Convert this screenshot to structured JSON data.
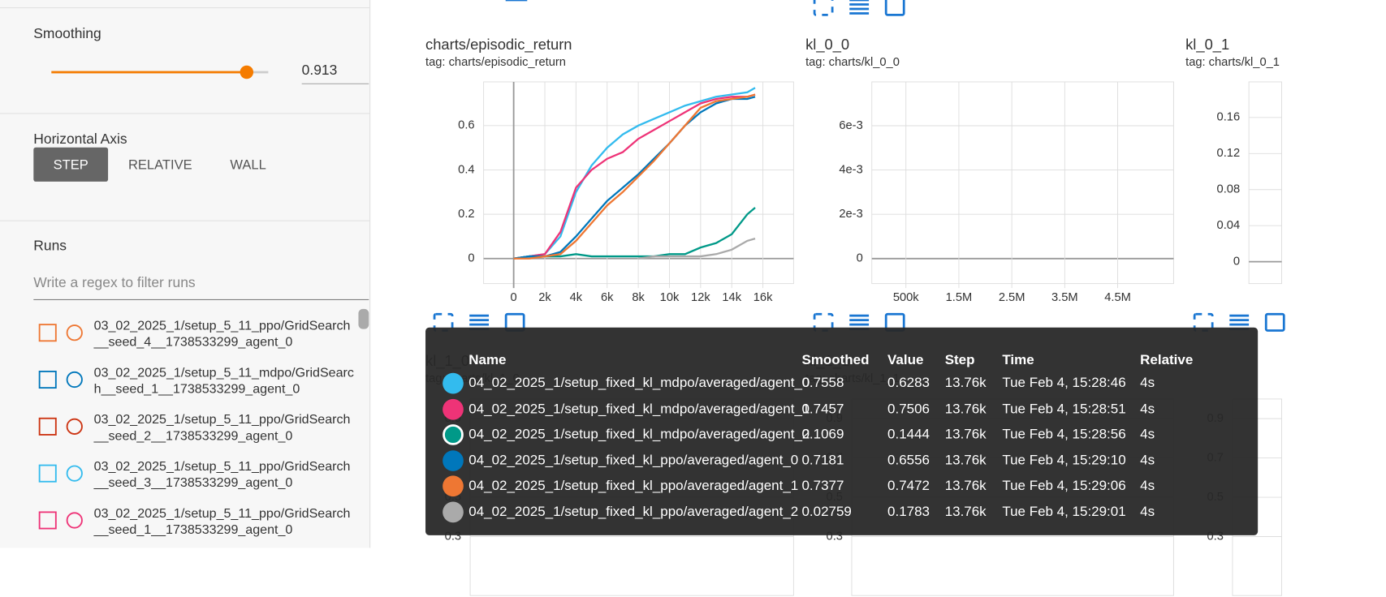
{
  "sidebar": {
    "smoothing": {
      "label": "Smoothing",
      "value": 0.913
    },
    "horizontal_axis": {
      "title": "Horizontal Axis",
      "options": [
        "STEP",
        "RELATIVE",
        "WALL"
      ],
      "selected": 0
    },
    "runs": {
      "title": "Runs",
      "filter_placeholder": "Write a regex to filter runs",
      "items": [
        {
          "name": "03_02_2025_1/setup_5_11_ppo/GridSearch__seed_4__1738533299_agent_0",
          "color": "#ee7733"
        },
        {
          "name": "03_02_2025_1/setup_5_11_mdpo/GridSearch__seed_1__1738533299_agent_0",
          "color": "#0077bb"
        },
        {
          "name": "03_02_2025_1/setup_5_11_ppo/GridSearch__seed_2__1738533299_agent_0",
          "color": "#cc3311"
        },
        {
          "name": "03_02_2025_1/setup_5_11_ppo/GridSearch__seed_3__1738533299_agent_0",
          "color": "#33bbee"
        },
        {
          "name": "03_02_2025_1/setup_5_11_ppo/GridSearch__seed_1__1738533299_agent_0",
          "color": "#ee3377"
        }
      ]
    }
  },
  "charts": [
    {
      "type": "line",
      "title": "charts/episodic_return",
      "tag": "tag: charts/episodic_return",
      "xlim": [
        -1930,
        17970
      ],
      "ylim": [
        -0.113,
        0.797
      ],
      "xticks": [
        0,
        {
          "value": 2000,
          "label": "2k"
        },
        {
          "value": 4000,
          "label": "4k"
        },
        {
          "value": 6000,
          "label": "6k"
        },
        {
          "value": 8000,
          "label": "8k"
        },
        {
          "value": 10000,
          "label": "10k"
        },
        {
          "value": 12000,
          "label": "12k"
        },
        {
          "value": 14000,
          "label": "14k"
        },
        {
          "value": 16000,
          "label": "16k"
        }
      ],
      "yticks": [
        0,
        0.2,
        0.4,
        0.6
      ],
      "x": [
        0,
        1000,
        2000,
        3000,
        4000,
        5000,
        6000,
        7000,
        8000,
        9000,
        10000,
        11000,
        12000,
        13000,
        14000,
        15000,
        15500
      ],
      "series": [
        {
          "color": "#33bbee",
          "values": [
            0,
            0.01,
            0.02,
            0.1,
            0.3,
            0.42,
            0.5,
            0.56,
            0.6,
            0.63,
            0.66,
            0.69,
            0.71,
            0.73,
            0.74,
            0.75,
            0.77
          ]
        },
        {
          "color": "#ee3377",
          "values": [
            0,
            0.01,
            0.02,
            0.12,
            0.32,
            0.4,
            0.45,
            0.48,
            0.54,
            0.58,
            0.62,
            0.66,
            0.7,
            0.72,
            0.73,
            0.73,
            0.74
          ]
        },
        {
          "color": "#009988",
          "values": [
            0,
            0.01,
            0.01,
            0.01,
            0.02,
            0.01,
            0.01,
            0.01,
            0.01,
            0.01,
            0.02,
            0.02,
            0.05,
            0.07,
            0.11,
            0.2,
            0.23
          ]
        },
        {
          "color": "#0077bb",
          "values": [
            0,
            0.01,
            0.01,
            0.03,
            0.1,
            0.18,
            0.26,
            0.32,
            0.38,
            0.45,
            0.52,
            0.6,
            0.66,
            0.7,
            0.72,
            0.72,
            0.73
          ]
        },
        {
          "color": "#ee7733",
          "values": [
            0,
            0,
            0.01,
            0.02,
            0.08,
            0.16,
            0.24,
            0.3,
            0.37,
            0.44,
            0.52,
            0.6,
            0.68,
            0.71,
            0.72,
            0.73,
            0.74
          ]
        },
        {
          "color": "#aaaaaa",
          "values": [
            null,
            null,
            null,
            null,
            null,
            null,
            null,
            null,
            0,
            0.01,
            0.01,
            0.01,
            0.01,
            0.02,
            0.04,
            0.08,
            0.09
          ]
        }
      ]
    },
    {
      "type": "line",
      "title": "kl_0_0",
      "tag": "tag: charts/kl_0_0",
      "xlim": [
        -144000,
        5557000
      ],
      "ylim": [
        -0.00113,
        0.00798
      ],
      "xticks": [
        {
          "value": 500000,
          "label": "500k"
        },
        {
          "value": 1500000,
          "label": "1.5M"
        },
        {
          "value": 2500000,
          "label": "2.5M"
        },
        {
          "value": 3500000,
          "label": "3.5M"
        },
        {
          "value": 4500000,
          "label": "4.5M"
        }
      ],
      "yticks": [
        0,
        {
          "value": 0.002,
          "label": "2e-3"
        },
        {
          "value": 0.004,
          "label": "4e-3"
        },
        {
          "value": 0.006,
          "label": "6e-3"
        }
      ]
    },
    {
      "type": "line",
      "title": "kl_0_1",
      "tag": "tag: charts/kl_0_1",
      "ylim": [
        -0.0243,
        0.1995
      ],
      "yticks": [
        0,
        0.04,
        0.08,
        0.12,
        0.16
      ]
    },
    {
      "type": "line",
      "title": "kl_1_0",
      "tag": "tag: charts/kl_1_0",
      "ylim": [
        0,
        1
      ],
      "yticks": [
        0.3,
        0.5,
        0.7,
        0.9
      ]
    },
    {
      "type": "line",
      "title": "kl_1_1",
      "tag": "tag: charts/kl_1_1",
      "ylim": [
        0,
        1
      ],
      "yticks": [
        0.3,
        0.5,
        0.7,
        0.9
      ]
    },
    {
      "type": "line",
      "ylim": [
        0,
        1
      ],
      "yticks": [
        0.3,
        0.5,
        0.7,
        0.9
      ]
    }
  ],
  "tooltip": {
    "columns": [
      "Name",
      "Smoothed",
      "Value",
      "Step",
      "Time",
      "Relative"
    ],
    "highlighted_row": 2,
    "rows": [
      {
        "name": "04_02_2025_1/setup_fixed_kl_mdpo/averaged/agent_0",
        "smoothed": 0.7558,
        "value": 0.6283,
        "step": "13.76k",
        "time": "Tue Feb 4, 15:28:46",
        "relative": "4s"
      },
      {
        "name": "04_02_2025_1/setup_fixed_kl_mdpo/averaged/agent_1",
        "smoothed": 0.7457,
        "value": 0.7506,
        "step": "13.76k",
        "time": "Tue Feb 4, 15:28:51",
        "relative": "4s"
      },
      {
        "name": "04_02_2025_1/setup_fixed_kl_mdpo/averaged/agent_2",
        "smoothed": 0.1069,
        "value": 0.1444,
        "step": "13.76k",
        "time": "Tue Feb 4, 15:28:56",
        "relative": "4s"
      },
      {
        "name": "04_02_2025_1/setup_fixed_kl_ppo/averaged/agent_0",
        "smoothed": 0.7181,
        "value": 0.6556,
        "step": "13.76k",
        "time": "Tue Feb 4, 15:29:10",
        "relative": "4s"
      },
      {
        "name": "04_02_2025_1/setup_fixed_kl_ppo/averaged/agent_1",
        "smoothed": 0.7377,
        "value": 0.7472,
        "step": "13.76k",
        "time": "Tue Feb 4, 15:29:06",
        "relative": "4s"
      },
      {
        "name": "04_02_2025_1/setup_fixed_kl_ppo/averaged/agent_2",
        "smoothed": 0.02759,
        "value": 0.1783,
        "step": "13.76k",
        "time": "Tue Feb 4, 15:29:01",
        "relative": "4s"
      }
    ]
  }
}
